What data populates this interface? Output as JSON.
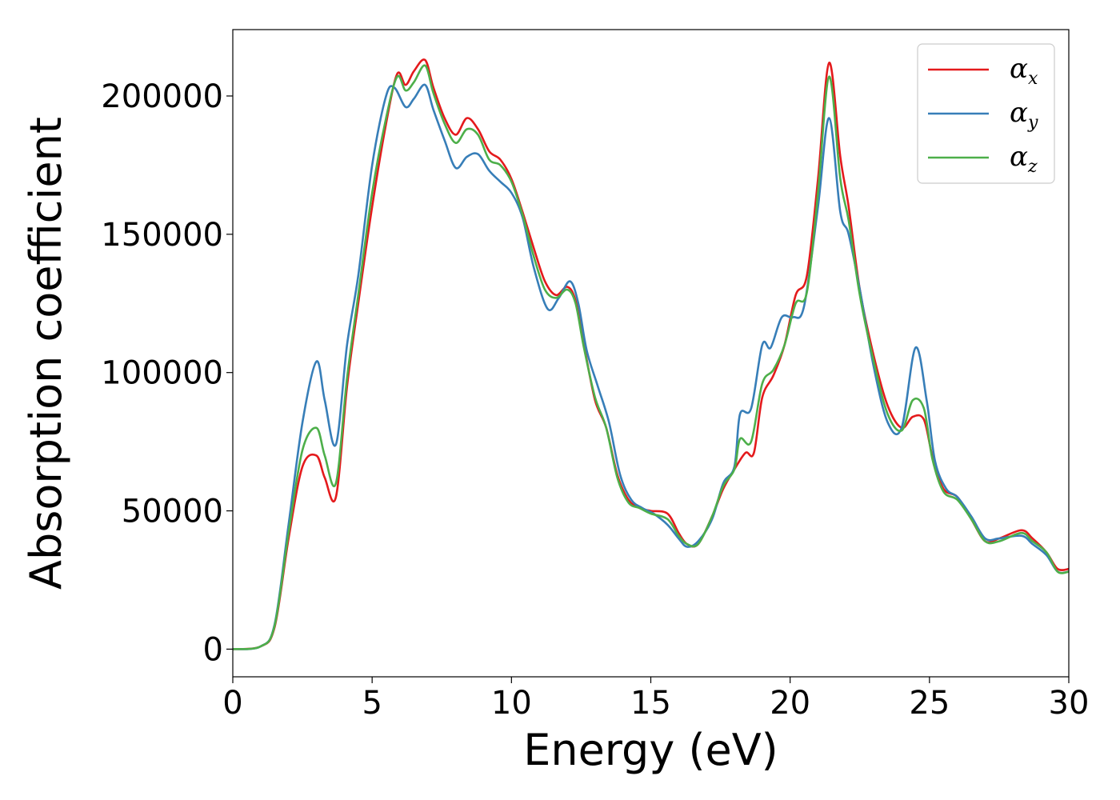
{
  "chart_data": {
    "type": "line",
    "xlabel": "Energy (eV)",
    "ylabel": "Absorption coefficient",
    "xlim": [
      0,
      30
    ],
    "ylim": [
      -10000,
      224000
    ],
    "xticks": [
      0,
      5,
      10,
      15,
      20,
      25,
      30
    ],
    "yticks": [
      0,
      50000,
      100000,
      150000,
      200000
    ],
    "grid": false,
    "legend_position": "top-right",
    "series": [
      {
        "name": "αx",
        "legend_symbol": "α",
        "legend_subscript": "x",
        "color": "#e41a1c",
        "x": [
          0,
          1.0,
          1.5,
          2.0,
          2.5,
          3.0,
          3.3,
          3.7,
          4.1,
          4.5,
          5.0,
          5.5,
          5.9,
          6.2,
          6.5,
          6.9,
          7.2,
          7.6,
          8.0,
          8.4,
          8.8,
          9.2,
          9.6,
          10.0,
          10.4,
          10.8,
          11.2,
          11.6,
          12.0,
          12.3,
          12.6,
          13.0,
          13.4,
          13.8,
          14.2,
          14.6,
          15.0,
          15.6,
          16.0,
          16.3,
          16.7,
          17.2,
          17.6,
          18.0,
          18.4,
          18.7,
          19.0,
          19.4,
          19.8,
          20.2,
          20.6,
          21.0,
          21.4,
          21.8,
          22.1,
          22.5,
          23.0,
          23.5,
          24.0,
          24.4,
          24.8,
          25.1,
          25.5,
          26.0,
          26.5,
          27.0,
          27.5,
          28.3,
          28.7,
          29.2,
          29.6,
          30.0
        ],
        "values": [
          0,
          1000,
          8000,
          40000,
          66000,
          70000,
          62000,
          55000,
          95000,
          125000,
          160000,
          190000,
          208000,
          204000,
          209000,
          213000,
          203000,
          192000,
          186000,
          192000,
          188000,
          180000,
          177000,
          170000,
          158000,
          145000,
          133000,
          128000,
          131000,
          126000,
          110000,
          90000,
          80000,
          63000,
          54000,
          51000,
          50000,
          49000,
          42000,
          38000,
          38000,
          48000,
          58000,
          65000,
          71000,
          71000,
          91000,
          99000,
          110000,
          128000,
          135000,
          170000,
          212000,
          178000,
          160000,
          130000,
          106000,
          88000,
          80000,
          84000,
          83000,
          70000,
          58000,
          55000,
          47000,
          39000,
          40000,
          43000,
          40000,
          35000,
          29000,
          29000
        ]
      },
      {
        "name": "αy",
        "legend_symbol": "α",
        "legend_subscript": "y",
        "color": "#377eb8",
        "x": [
          0,
          1.0,
          1.5,
          2.0,
          2.5,
          3.0,
          3.3,
          3.7,
          4.1,
          4.5,
          5.0,
          5.5,
          5.8,
          6.2,
          6.5,
          6.9,
          7.2,
          7.6,
          8.0,
          8.4,
          8.8,
          9.2,
          9.6,
          10.0,
          10.4,
          10.8,
          11.3,
          11.7,
          12.1,
          12.4,
          12.7,
          13.1,
          13.5,
          13.9,
          14.3,
          14.7,
          15.1,
          15.6,
          16.0,
          16.3,
          16.7,
          17.2,
          17.6,
          18.0,
          18.2,
          18.6,
          19.0,
          19.3,
          19.7,
          20.1,
          20.5,
          21.0,
          21.4,
          21.8,
          22.1,
          22.5,
          23.0,
          23.5,
          24.0,
          24.5,
          24.9,
          25.2,
          25.6,
          26.0,
          26.5,
          27.0,
          27.5,
          28.3,
          28.7,
          29.2,
          29.6,
          30.0
        ],
        "values": [
          0,
          1000,
          9000,
          45000,
          82000,
          104000,
          90000,
          74000,
          110000,
          135000,
          175000,
          200000,
          203000,
          196000,
          199000,
          204000,
          195000,
          184000,
          174000,
          178000,
          179000,
          173000,
          169000,
          165000,
          156000,
          138000,
          123000,
          127000,
          133000,
          125000,
          108000,
          95000,
          82000,
          63000,
          54000,
          51000,
          49000,
          45000,
          40000,
          37000,
          39000,
          47000,
          60000,
          66000,
          85000,
          87000,
          110000,
          109000,
          120000,
          120000,
          124000,
          160000,
          192000,
          158000,
          150000,
          130000,
          102000,
          82000,
          80000,
          109000,
          90000,
          68000,
          58000,
          55000,
          48000,
          40000,
          40000,
          41000,
          38000,
          34000,
          28000,
          28000
        ]
      },
      {
        "name": "αz",
        "legend_symbol": "α",
        "legend_subscript": "z",
        "color": "#4daf4a",
        "x": [
          0,
          1.0,
          1.5,
          2.0,
          2.5,
          3.0,
          3.3,
          3.7,
          4.1,
          4.5,
          5.0,
          5.5,
          5.9,
          6.2,
          6.5,
          6.9,
          7.2,
          7.6,
          8.0,
          8.4,
          8.8,
          9.2,
          9.6,
          10.0,
          10.4,
          10.8,
          11.2,
          11.6,
          12.0,
          12.3,
          12.6,
          13.0,
          13.4,
          13.8,
          14.2,
          14.6,
          15.0,
          15.6,
          16.0,
          16.3,
          16.7,
          17.2,
          17.6,
          18.0,
          18.2,
          18.6,
          19.0,
          19.4,
          19.8,
          20.2,
          20.6,
          21.0,
          21.4,
          21.8,
          22.1,
          22.5,
          23.0,
          23.5,
          24.0,
          24.4,
          24.8,
          25.1,
          25.5,
          26.0,
          26.5,
          27.0,
          27.5,
          28.3,
          28.7,
          29.2,
          29.6,
          30.0
        ],
        "values": [
          0,
          1000,
          8500,
          42000,
          72000,
          80000,
          70000,
          60000,
          98000,
          128000,
          165000,
          192000,
          207000,
          202000,
          205000,
          211000,
          201000,
          190000,
          183000,
          188000,
          186000,
          177000,
          175000,
          169000,
          157000,
          142000,
          130000,
          127000,
          130000,
          125000,
          109000,
          91000,
          80000,
          62000,
          53000,
          51000,
          49000,
          47000,
          41000,
          38000,
          38000,
          48000,
          59000,
          65000,
          76000,
          75000,
          96000,
          101000,
          110000,
          125000,
          129000,
          165000,
          207000,
          170000,
          155000,
          128000,
          104000,
          85000,
          79000,
          90000,
          87000,
          69000,
          57000,
          54000,
          47000,
          39000,
          39000,
          42000,
          39000,
          35000,
          28000,
          28000
        ]
      }
    ]
  }
}
